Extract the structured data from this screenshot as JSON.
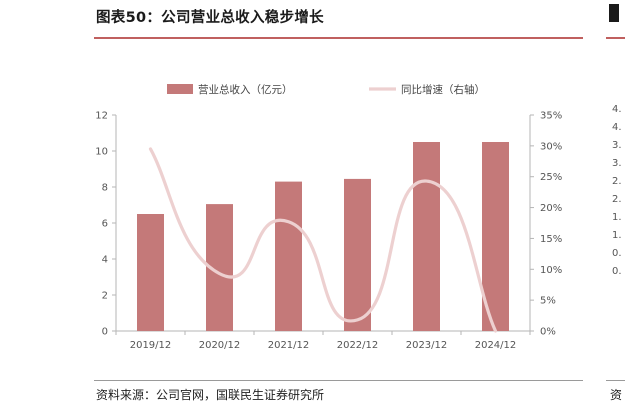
{
  "header": {
    "title": "图表50：公司营业总收入稳步增长"
  },
  "footer": {
    "source": "资料来源：公司官网，国联民生证券研究所"
  },
  "colors": {
    "bar": "#c47979",
    "line": "#edd0d0",
    "rule": "#c0605f"
  },
  "chart_data": {
    "type": "bar",
    "title": "",
    "categories": [
      "2019/12",
      "2020/12",
      "2021/12",
      "2022/12",
      "2023/12",
      "2024/12"
    ],
    "series": [
      {
        "name": "营业总收入（亿元）",
        "type": "bar",
        "axis": "left",
        "values": [
          6.5,
          7.05,
          8.3,
          8.45,
          10.5,
          10.5
        ]
      },
      {
        "name": "同比增速（右轴）",
        "type": "line",
        "axis": "right",
        "unit": "%",
        "values": [
          29.5,
          9.3,
          17.7,
          1.8,
          24.3,
          0.0
        ]
      }
    ],
    "y_left": {
      "ylim": [
        0,
        12
      ],
      "ticks": [
        "0",
        "2",
        "4",
        "6",
        "8",
        "10",
        "12"
      ]
    },
    "y_right": {
      "ylim": [
        0,
        35
      ],
      "ticks": [
        "0%",
        "5%",
        "10%",
        "15%",
        "20%",
        "25%",
        "30%",
        "35%"
      ]
    },
    "legend": "top",
    "grid": false
  },
  "clipped_panel": {
    "tick_labels": [
      "4.",
      "4.",
      "3.",
      "3.",
      "2.",
      "2.",
      "1.",
      "1.",
      "0.",
      "0."
    ],
    "footer_char": "资"
  }
}
